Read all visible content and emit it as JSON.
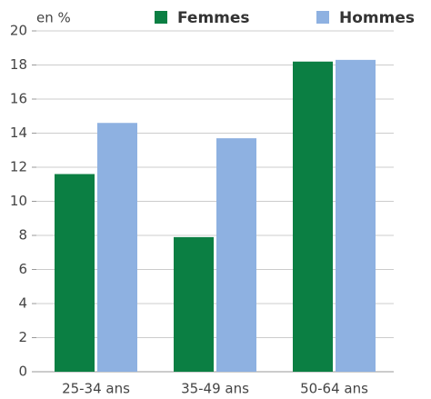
{
  "chart_data": {
    "type": "bar",
    "y_label": "en %",
    "categories": [
      "25-34 ans",
      "35-49 ans",
      "50-64 ans"
    ],
    "series": [
      {
        "name": "Femmes",
        "color": "#0b7f43",
        "values": [
          11.6,
          7.9,
          18.2
        ]
      },
      {
        "name": "Hommes",
        "color": "#8eb1e1",
        "values": [
          14.6,
          13.7,
          18.3
        ]
      }
    ],
    "ylim": [
      0,
      20
    ],
    "yticks": [
      0,
      2,
      4,
      6,
      8,
      10,
      12,
      14,
      16,
      18,
      20
    ],
    "grid": true
  }
}
